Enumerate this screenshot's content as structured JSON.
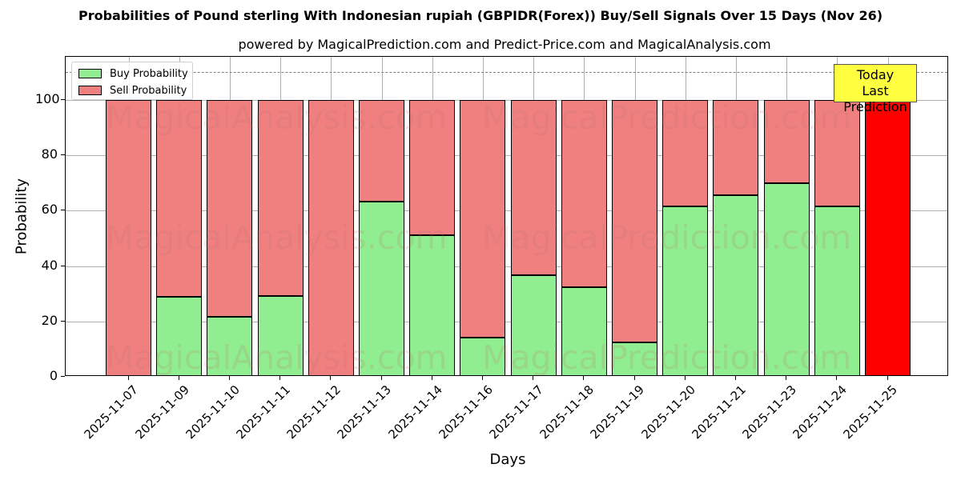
{
  "chart_data": {
    "type": "bar",
    "stacked": true,
    "title": "Probabilities of Pound sterling With Indonesian rupiah (GBPIDR(Forex)) Buy/Sell Signals Over 15 Days (Nov 26)",
    "subtitle": "powered by MagicalPrediction.com and Predict-Price.com and MagicalAnalysis.com",
    "xlabel": "Days",
    "ylabel": "Probability",
    "ylim": [
      0,
      115
    ],
    "yticks": [
      0,
      20,
      40,
      60,
      80,
      100
    ],
    "grid": true,
    "legend_position": "upper left",
    "reference_line": {
      "y": 110,
      "style": "dashed",
      "color": "#808080"
    },
    "categories": [
      "2025-11-07",
      "2025-11-09",
      "2025-11-10",
      "2025-11-11",
      "2025-11-12",
      "2025-11-13",
      "2025-11-14",
      "2025-11-16",
      "2025-11-17",
      "2025-11-18",
      "2025-11-19",
      "2025-11-20",
      "2025-11-21",
      "2025-11-23",
      "2025-11-24",
      "2025-11-25"
    ],
    "series": [
      {
        "name": "Buy Probability",
        "color": "#90ee90",
        "values": [
          0,
          28.8,
          21.8,
          29.3,
          0,
          63.4,
          51.3,
          14.3,
          36.8,
          32.4,
          12.3,
          61.7,
          65.5,
          69.8,
          61.7,
          0
        ]
      },
      {
        "name": "Sell Probability",
        "color": "#f08080",
        "values": [
          100,
          71.2,
          78.2,
          70.7,
          100,
          36.6,
          48.7,
          85.7,
          63.2,
          67.6,
          87.7,
          38.3,
          34.5,
          30.2,
          38.3,
          100
        ]
      }
    ],
    "highlight": {
      "category": "2025-11-25",
      "color": "#ff0000",
      "annotation": "Today\nLast Prediction"
    }
  },
  "legend": {
    "buy": "Buy Probability",
    "sell": "Sell Probability"
  },
  "annotation": {
    "line1": "Today",
    "line2": "Last Prediction"
  },
  "watermarks": [
    "MagicalAnalysis.com",
    "MagicalPrediction.com"
  ]
}
